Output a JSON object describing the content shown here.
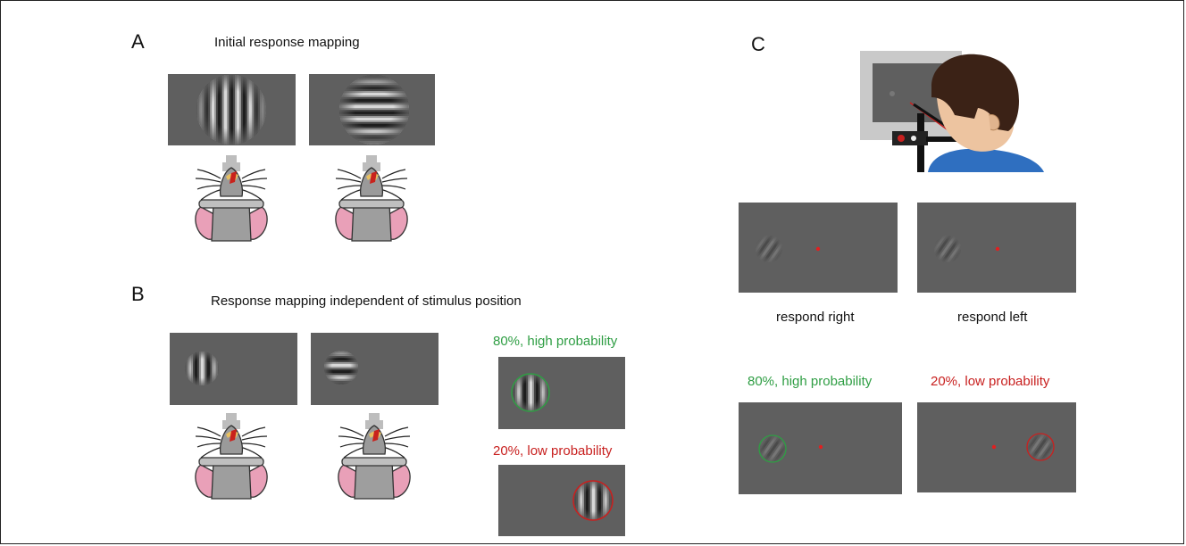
{
  "panels": {
    "a": {
      "letter": "A",
      "title": "Initial response mapping"
    },
    "b": {
      "letter": "B",
      "title": "Response mapping independent of stimulus position",
      "high_label": "80%, high probability",
      "low_label": "20%, low probability"
    },
    "c": {
      "letter": "C",
      "respond_right": "respond right",
      "respond_left": "respond left",
      "high_label": "80%, high probability",
      "low_label": "20%, low probability"
    }
  },
  "colors": {
    "high": "#2f9e44",
    "low": "#c8201f",
    "screen": "#5f5f5f",
    "mouse_ear": "#e9a0b8",
    "human_hair": "#3b2216",
    "human_skin": "#edc4a0",
    "human_shirt": "#2f6fc0"
  }
}
